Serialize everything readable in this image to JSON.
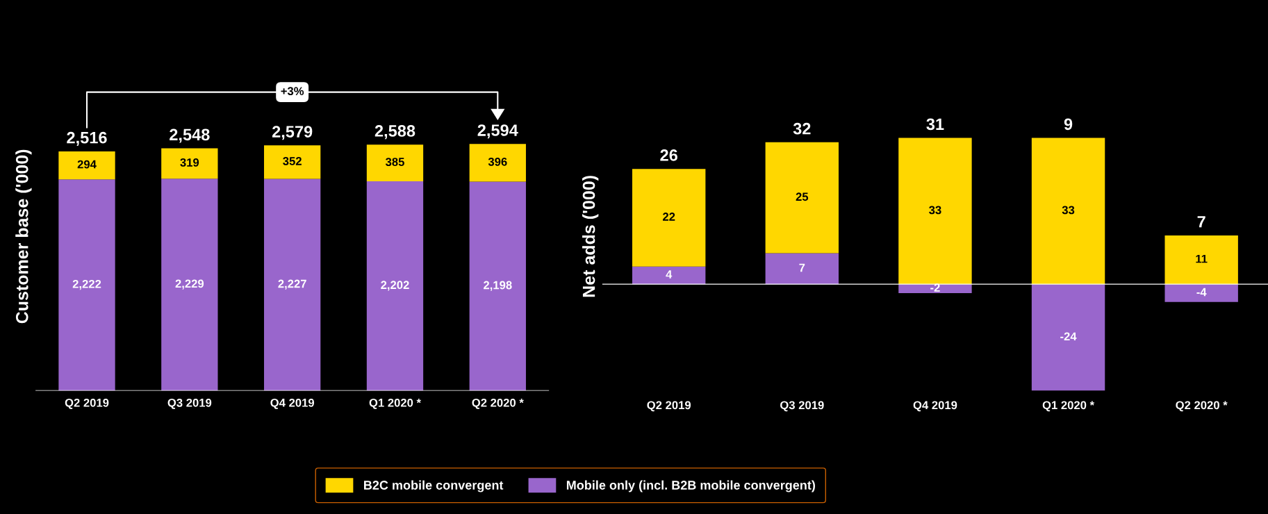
{
  "chart_data": [
    {
      "type": "bar",
      "stacked": true,
      "ylabel": "Customer base ('000)",
      "categories": [
        "Q2 2019",
        "Q3 2019",
        "Q4 2019",
        "Q1 2020 *",
        "Q2 2020 *"
      ],
      "series": [
        {
          "name": "Mobile only (incl. B2B mobile convergent)",
          "color": "#9966cc",
          "values": [
            2222,
            2229,
            2227,
            2202,
            2198
          ],
          "value_labels": [
            "2,222",
            "2,229",
            "2,227",
            "2,202",
            "2,198"
          ]
        },
        {
          "name": "B2C mobile convergent",
          "color": "#ffd700",
          "values": [
            294,
            319,
            352,
            385,
            396
          ],
          "value_labels": [
            "294",
            "319",
            "352",
            "385",
            "396"
          ]
        }
      ],
      "totals": [
        "2,516",
        "2,548",
        "2,579",
        "2,588",
        "2,594"
      ],
      "tick_labels": "x",
      "legend": "bottom",
      "grid": false,
      "annotations": [
        "+3%"
      ]
    },
    {
      "type": "bar",
      "stacked": true,
      "ylabel": "Net adds ('000)",
      "categories": [
        "Q2 2019",
        "Q3 2019",
        "Q4 2019",
        "Q1 2020 *",
        "Q2 2020 *"
      ],
      "series": [
        {
          "name": "Mobile only (incl. B2B mobile convergent)",
          "color": "#9966cc",
          "values": [
            4,
            7,
            -2,
            -24,
            -4
          ]
        },
        {
          "name": "B2C mobile convergent",
          "color": "#ffd700",
          "values": [
            22,
            25,
            33,
            33,
            11
          ]
        }
      ],
      "totals": [
        "26",
        "32",
        "31",
        "9",
        "7"
      ],
      "data_labels": true,
      "tick_labels": "x",
      "legend": "bottom",
      "grid": false
    }
  ]
}
